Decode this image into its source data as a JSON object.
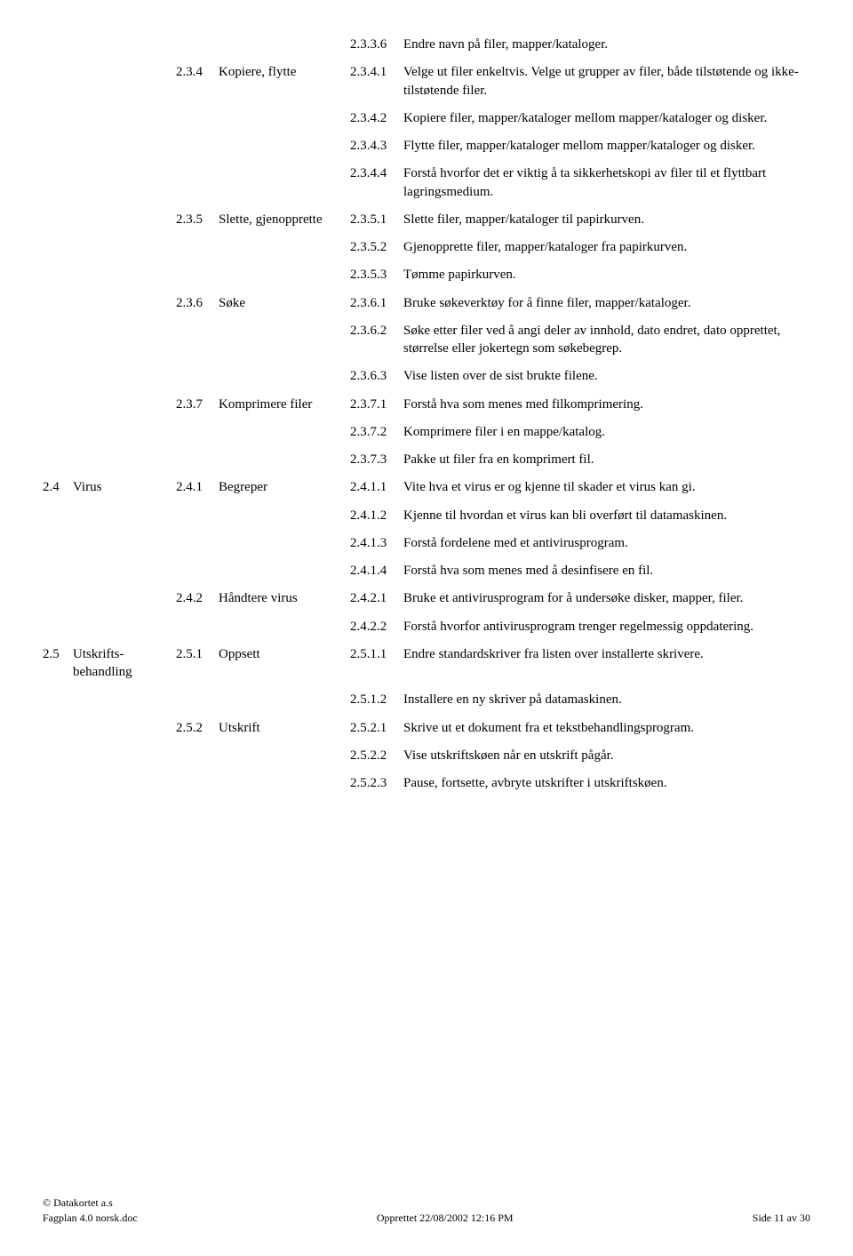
{
  "rows": [
    {
      "a": "",
      "b": "",
      "c": "",
      "d": "",
      "e": "2.3.3.6",
      "f": "Endre navn på filer, mapper/kataloger."
    },
    {
      "a": "",
      "b": "",
      "c": "2.3.4",
      "d": "Kopiere, flytte",
      "e": "2.3.4.1",
      "f": "Velge ut filer enkeltvis. Velge ut grupper av filer, både tilstøtende og ikke-tilstøtende filer."
    },
    {
      "a": "",
      "b": "",
      "c": "",
      "d": "",
      "e": "2.3.4.2",
      "f": "Kopiere filer, mapper/kataloger mellom mapper/kataloger og disker."
    },
    {
      "a": "",
      "b": "",
      "c": "",
      "d": "",
      "e": "2.3.4.3",
      "f": "Flytte filer, mapper/kataloger mellom mapper/kataloger og disker."
    },
    {
      "a": "",
      "b": "",
      "c": "",
      "d": "",
      "e": "2.3.4.4",
      "f": "Forstå hvorfor det er viktig å ta sikkerhetskopi av filer til et flyttbart lagringsmedium."
    },
    {
      "a": "",
      "b": "",
      "c": "2.3.5",
      "d": "Slette, gjenopprette",
      "e": "2.3.5.1",
      "f": "Slette filer, mapper/kataloger til papirkurven."
    },
    {
      "a": "",
      "b": "",
      "c": "",
      "d": "",
      "e": "2.3.5.2",
      "f": "Gjenopprette filer, mapper/kataloger fra papirkurven."
    },
    {
      "a": "",
      "b": "",
      "c": "",
      "d": "",
      "e": "2.3.5.3",
      "f": "Tømme papirkurven."
    },
    {
      "a": "",
      "b": "",
      "c": "2.3.6",
      "d": "Søke",
      "e": "2.3.6.1",
      "f": "Bruke søkeverktøy for å finne filer, mapper/kataloger."
    },
    {
      "a": "",
      "b": "",
      "c": "",
      "d": "",
      "e": "2.3.6.2",
      "f": "Søke etter filer ved å angi deler av innhold, dato endret, dato opprettet, størrelse eller jokertegn som søkebegrep."
    },
    {
      "a": "",
      "b": "",
      "c": "",
      "d": "",
      "e": "2.3.6.3",
      "f": "Vise listen over de sist brukte filene."
    },
    {
      "a": "",
      "b": "",
      "c": "2.3.7",
      "d": "Komprimere filer",
      "e": "2.3.7.1",
      "f": "Forstå hva som menes med filkomprimering."
    },
    {
      "a": "",
      "b": "",
      "c": "",
      "d": "",
      "e": "2.3.7.2",
      "f": "Komprimere filer i en mappe/katalog."
    },
    {
      "a": "",
      "b": "",
      "c": "",
      "d": "",
      "e": "2.3.7.3",
      "f": "Pakke ut filer fra en komprimert fil."
    },
    {
      "a": "2.4",
      "b": "Virus",
      "c": "2.4.1",
      "d": "Begreper",
      "e": "2.4.1.1",
      "f": "Vite hva et virus er og kjenne til skader et virus kan gi."
    },
    {
      "a": "",
      "b": "",
      "c": "",
      "d": "",
      "e": "2.4.1.2",
      "f": "Kjenne til hvordan et virus kan bli overført til datamaskinen."
    },
    {
      "a": "",
      "b": "",
      "c": "",
      "d": "",
      "e": "2.4.1.3",
      "f": "Forstå fordelene med et antivirusprogram."
    },
    {
      "a": "",
      "b": "",
      "c": "",
      "d": "",
      "e": "2.4.1.4",
      "f": "Forstå hva som menes med å desinfisere en fil."
    },
    {
      "a": "",
      "b": "",
      "c": "2.4.2",
      "d": "Håndtere virus",
      "e": "2.4.2.1",
      "f": "Bruke et antivirusprogram for å undersøke disker, mapper, filer."
    },
    {
      "a": "",
      "b": "",
      "c": "",
      "d": "",
      "e": "2.4.2.2",
      "f": "Forstå hvorfor antivirusprogram trenger regelmessig oppdatering."
    },
    {
      "a": "2.5",
      "b": "Utskrifts-behandling",
      "c": "2.5.1",
      "d": "Oppsett",
      "e": "2.5.1.1",
      "f": "Endre standardskriver fra listen over installerte skrivere."
    },
    {
      "a": "",
      "b": "",
      "c": "",
      "d": "",
      "e": "2.5.1.2",
      "f": "Installere en ny skriver på datamaskinen."
    },
    {
      "a": "",
      "b": "",
      "c": "2.5.2",
      "d": "Utskrift",
      "e": "2.5.2.1",
      "f": "Skrive ut et dokument fra et tekstbehandlingsprogram."
    },
    {
      "a": "",
      "b": "",
      "c": "",
      "d": "",
      "e": "2.5.2.2",
      "f": "Vise utskriftskøen når en utskrift pågår."
    },
    {
      "a": "",
      "b": "",
      "c": "",
      "d": "",
      "e": "2.5.2.3",
      "f": "Pause, fortsette, avbryte utskrifter i utskriftskøen."
    }
  ],
  "footer": {
    "left_line1": "© Datakortet a.s",
    "left_line2": "Fagplan 4.0 norsk.doc",
    "center": "Opprettet 22/08/2002 12:16 PM",
    "right": "Side 11 av 30"
  }
}
